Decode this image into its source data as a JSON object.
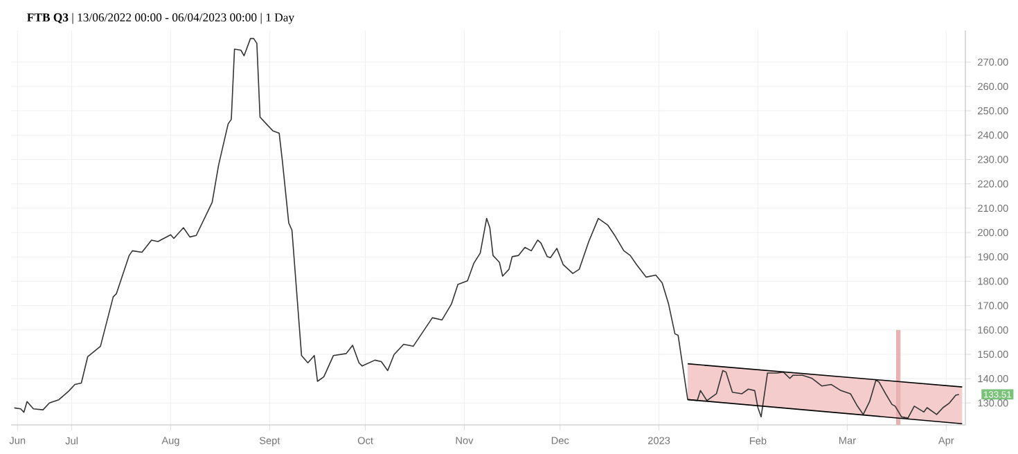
{
  "chart_data": {
    "type": "line",
    "title": "**FTB Q3** | 13/06/2022 00:00 - 06/04/2023 00:00 | 1 Day",
    "xlim": [
      "2022-06-12",
      "2023-04-07"
    ],
    "xticks": [
      {
        "value": "2022-06-14",
        "label": "Jun"
      },
      {
        "value": "2022-07-01",
        "label": "Jul"
      },
      {
        "value": "2022-08-01",
        "label": "Aug"
      },
      {
        "value": "2022-09-01",
        "label": "Sept"
      },
      {
        "value": "2022-10-01",
        "label": "Oct"
      },
      {
        "value": "2022-11-01",
        "label": "Nov"
      },
      {
        "value": "2022-12-01",
        "label": "Dec"
      },
      {
        "value": "2023-01-01",
        "label": "2023"
      },
      {
        "value": "2023-02-01",
        "label": "Feb"
      },
      {
        "value": "2023-03-01",
        "label": "Mar"
      },
      {
        "value": "2023-04-01",
        "label": "Apr"
      }
    ],
    "ylim": [
      121,
      283
    ],
    "yticks": [
      {
        "value": 130,
        "label": "130.00"
      },
      {
        "value": 140,
        "label": "140.00"
      },
      {
        "value": 150,
        "label": "150.00"
      },
      {
        "value": 160,
        "label": "160.00"
      },
      {
        "value": 170,
        "label": "170.00"
      },
      {
        "value": 180,
        "label": "180.00"
      },
      {
        "value": 190,
        "label": "190.00"
      },
      {
        "value": 200,
        "label": "200.00"
      },
      {
        "value": 210,
        "label": "210.00"
      },
      {
        "value": 220,
        "label": "220.00"
      },
      {
        "value": 230,
        "label": "230.00"
      },
      {
        "value": 240,
        "label": "240.00"
      },
      {
        "value": 250,
        "label": "250.00"
      },
      {
        "value": 260,
        "label": "260.00"
      },
      {
        "value": 270,
        "label": "270.00"
      }
    ],
    "grid": true,
    "annotations": [
      {
        "text": "133.51",
        "x": "2023-04-05",
        "y": 133.51
      }
    ],
    "series": [
      {
        "color": "#333333",
        "x": [
          "2022-06-13",
          "2022-06-15",
          "2022-06-16",
          "2022-06-17",
          "2022-06-19",
          "2022-06-22",
          "2022-06-24",
          "2022-06-27",
          "2022-06-30",
          "2022-07-02",
          "2022-07-04",
          "2022-07-06",
          "2022-07-10",
          "2022-07-14",
          "2022-07-15",
          "2022-07-19",
          "2022-07-20",
          "2022-07-23",
          "2022-07-26",
          "2022-07-28",
          "2022-08-01",
          "2022-08-02",
          "2022-08-05",
          "2022-08-07",
          "2022-08-09",
          "2022-08-14",
          "2022-08-16",
          "2022-08-19",
          "2022-08-20",
          "2022-08-21",
          "2022-08-23",
          "2022-08-24",
          "2022-08-26",
          "2022-08-27",
          "2022-08-28",
          "2022-08-29",
          "2022-08-31",
          "2022-09-02",
          "2022-09-04",
          "2022-09-05",
          "2022-09-07",
          "2022-09-08",
          "2022-09-11",
          "2022-09-13",
          "2022-09-15",
          "2022-09-16",
          "2022-09-18",
          "2022-09-21",
          "2022-09-25",
          "2022-09-27",
          "2022-09-29",
          "2022-09-30",
          "2022-10-04",
          "2022-10-06",
          "2022-10-08",
          "2022-10-10",
          "2022-10-13",
          "2022-10-16",
          "2022-10-22",
          "2022-10-25",
          "2022-10-28",
          "2022-10-30",
          "2022-11-02",
          "2022-11-04",
          "2022-11-06",
          "2022-11-08",
          "2022-11-09",
          "2022-11-10",
          "2022-11-12",
          "2022-11-13",
          "2022-11-15",
          "2022-11-16",
          "2022-11-18",
          "2022-11-20",
          "2022-11-22",
          "2022-11-24",
          "2022-11-25",
          "2022-11-27",
          "2022-11-28",
          "2022-11-30",
          "2022-12-02",
          "2022-12-05",
          "2022-12-07",
          "2022-12-10",
          "2022-12-13",
          "2022-12-16",
          "2022-12-18",
          "2022-12-21",
          "2022-12-23",
          "2022-12-25",
          "2022-12-28",
          "2022-12-31",
          "2023-01-02",
          "2023-01-04",
          "2023-01-06",
          "2023-01-07",
          "2023-01-10",
          "2023-01-13",
          "2023-01-14",
          "2023-01-16",
          "2023-01-19",
          "2023-01-21",
          "2023-01-22",
          "2023-01-24",
          "2023-01-27",
          "2023-01-29",
          "2023-01-31",
          "2023-02-01",
          "2023-02-02",
          "2023-02-04",
          "2023-02-07",
          "2023-02-09",
          "2023-02-11",
          "2023-02-12",
          "2023-02-15",
          "2023-02-18",
          "2023-02-21",
          "2023-02-24",
          "2023-02-27",
          "2023-03-02",
          "2023-03-04",
          "2023-03-06",
          "2023-03-08",
          "2023-03-10",
          "2023-03-11",
          "2023-03-13",
          "2023-03-15",
          "2023-03-16",
          "2023-03-18",
          "2023-03-20",
          "2023-03-22",
          "2023-03-25",
          "2023-03-26",
          "2023-03-29",
          "2023-03-31",
          "2023-04-02",
          "2023-04-04",
          "2023-04-05"
        ],
        "values": [
          128.0,
          127.6,
          126.2,
          130.6,
          127.6,
          127.2,
          130.0,
          131.4,
          134.8,
          137.6,
          138.2,
          149.0,
          153.3,
          173.6,
          174.9,
          190.6,
          192.5,
          191.9,
          196.9,
          196.3,
          199.1,
          197.6,
          202.0,
          198.2,
          198.8,
          212.4,
          227.6,
          244.6,
          246.5,
          275.3,
          274.9,
          272.6,
          279.7,
          279.7,
          277.7,
          247.4,
          244.6,
          241.8,
          240.8,
          229.4,
          203.9,
          201.0,
          149.5,
          146.5,
          149.5,
          138.9,
          140.8,
          149.5,
          150.3,
          153.7,
          146.5,
          145.2,
          147.6,
          147.0,
          143.3,
          149.9,
          154.1,
          153.3,
          165.0,
          164.1,
          170.7,
          178.7,
          180.2,
          187.4,
          191.6,
          205.8,
          202.0,
          190.6,
          187.8,
          182.1,
          184.9,
          190.1,
          190.6,
          193.9,
          192.5,
          196.9,
          195.7,
          190.1,
          189.7,
          193.5,
          186.8,
          183.2,
          184.9,
          196.3,
          205.8,
          203.0,
          199.1,
          192.5,
          190.6,
          186.8,
          181.7,
          182.5,
          179.3,
          170.7,
          158.4,
          157.8,
          131.4,
          131.0,
          135.1,
          131.0,
          133.8,
          143.3,
          142.7,
          134.4,
          133.8,
          135.7,
          135.1,
          128.1,
          124.3,
          142.3,
          142.3,
          142.7,
          140.1,
          141.4,
          141.4,
          140.1,
          137.0,
          137.6,
          135.1,
          133.8,
          129.1,
          125.3,
          130.6,
          139.5,
          138.5,
          133.8,
          129.4,
          128.7,
          124.3,
          123.8,
          128.7,
          126.3,
          128.1,
          125.3,
          128.1,
          130.0,
          133.2,
          133.5
        ]
      },
      {
        "type": "line",
        "color": "#f4cccc",
        "x": [
          "2023-01-10",
          "2023-04-06"
        ],
        "values": [
          null,
          null
        ],
        "lower": [
          131.4,
          121.5
        ],
        "upper": [
          146.1,
          136.6
        ]
      },
      {
        "type": "line",
        "color": "#000000",
        "x": [
          "2023-01-10",
          "2023-04-06"
        ],
        "values": [
          146.1,
          136.6
        ]
      },
      {
        "type": "line",
        "color": "#000000",
        "x": [
          "2023-01-10",
          "2023-04-06"
        ],
        "values": [
          131.4,
          121.5
        ]
      },
      {
        "type": "bar",
        "color": "#e8b2b2",
        "x": [
          "2023-03-17"
        ],
        "values": [
          160
        ]
      }
    ]
  }
}
